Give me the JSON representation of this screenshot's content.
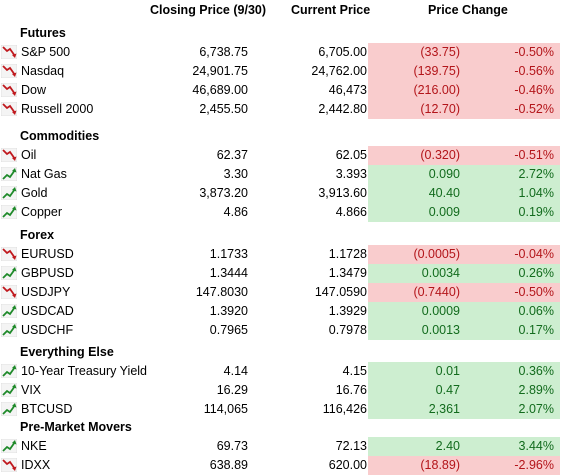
{
  "headers": {
    "closing": "Closing Price (9/30)",
    "current": "Current Price",
    "change": "Price Change"
  },
  "colors": {
    "negative_bg": "#f9cccd",
    "positive_bg": "#cdeed0",
    "negative_text": "#b3151a",
    "positive_text": "#126b1d",
    "down_icon": "#c0191e",
    "up_icon": "#1f8a2a"
  },
  "sections": [
    {
      "title": "Futures",
      "rows": [
        {
          "name": "S&P 500",
          "close": "6,738.75",
          "current": "6,705.00",
          "change": "(33.75)",
          "pct": "-0.50%",
          "dir": "down",
          "icon": "down-arrow-icon"
        },
        {
          "name": "Nasdaq",
          "close": "24,901.75",
          "current": "24,762.00",
          "change": "(139.75)",
          "pct": "-0.56%",
          "dir": "down",
          "icon": "down-arrow-icon"
        },
        {
          "name": "Dow",
          "close": "46,689.00",
          "current": "46,473",
          "change": "(216.00)",
          "pct": "-0.46%",
          "dir": "down",
          "icon": "down-arrow-icon"
        },
        {
          "name": "Russell 2000",
          "close": "2,455.50",
          "current": "2,442.80",
          "change": "(12.70)",
          "pct": "-0.52%",
          "dir": "down",
          "icon": "down-arrow-icon"
        }
      ]
    },
    {
      "title": "Commodities",
      "rows": [
        {
          "name": "Oil",
          "close": "62.37",
          "current": "62.05",
          "change": "(0.320)",
          "pct": "-0.51%",
          "dir": "down",
          "icon": "down-arrow-icon"
        },
        {
          "name": "Nat Gas",
          "close": "3.30",
          "current": "3.393",
          "change": "0.090",
          "pct": "2.72%",
          "dir": "up",
          "icon": "up-arrow-icon"
        },
        {
          "name": "Gold",
          "close": "3,873.20",
          "current": "3,913.60",
          "change": "40.40",
          "pct": "1.04%",
          "dir": "up",
          "icon": "up-arrow-icon"
        },
        {
          "name": "Copper",
          "close": "4.86",
          "current": "4.866",
          "change": "0.009",
          "pct": "0.19%",
          "dir": "up",
          "icon": "up-arrow-icon"
        }
      ]
    },
    {
      "title": "Forex",
      "rows": [
        {
          "name": "EURUSD",
          "close": "1.1733",
          "current": "1.1728",
          "change": "(0.0005)",
          "pct": "-0.04%",
          "dir": "down",
          "icon": "down-arrow-icon"
        },
        {
          "name": "GBPUSD",
          "close": "1.3444",
          "current": "1.3479",
          "change": "0.0034",
          "pct": "0.26%",
          "dir": "up",
          "icon": "up-arrow-icon"
        },
        {
          "name": "USDJPY",
          "close": "147.8030",
          "current": "147.0590",
          "change": "(0.7440)",
          "pct": "-0.50%",
          "dir": "down",
          "icon": "down-arrow-icon"
        },
        {
          "name": "USDCAD",
          "close": "1.3920",
          "current": "1.3929",
          "change": "0.0009",
          "pct": "0.06%",
          "dir": "up",
          "icon": "up-arrow-icon"
        },
        {
          "name": "USDCHF",
          "close": "0.7965",
          "current": "0.7978",
          "change": "0.0013",
          "pct": "0.17%",
          "dir": "up",
          "icon": "up-arrow-icon"
        }
      ]
    },
    {
      "title": "Everything Else",
      "rows": [
        {
          "name": "10-Year Treasury Yield",
          "close": "4.14",
          "current": "4.15",
          "change": "0.01",
          "pct": "0.36%",
          "dir": "up",
          "icon": "up-arrow-icon"
        },
        {
          "name": "VIX",
          "close": "16.29",
          "current": "16.76",
          "change": "0.47",
          "pct": "2.89%",
          "dir": "up",
          "icon": "up-arrow-icon"
        },
        {
          "name": "BTCUSD",
          "close": "114,065",
          "current": "116,426",
          "change": "2,361",
          "pct": "2.07%",
          "dir": "up",
          "icon": "up-arrow-icon"
        }
      ]
    },
    {
      "title": "Pre-Market Movers",
      "rows": [
        {
          "name": "NKE",
          "close": "69.73",
          "current": "72.13",
          "change": "2.40",
          "pct": "3.44%",
          "dir": "up",
          "icon": "up-arrow-icon"
        },
        {
          "name": "IDXX",
          "close": "638.89",
          "current": "620.00",
          "change": "(18.89)",
          "pct": "-2.96%",
          "dir": "down",
          "icon": "down-arrow-icon"
        }
      ]
    }
  ]
}
